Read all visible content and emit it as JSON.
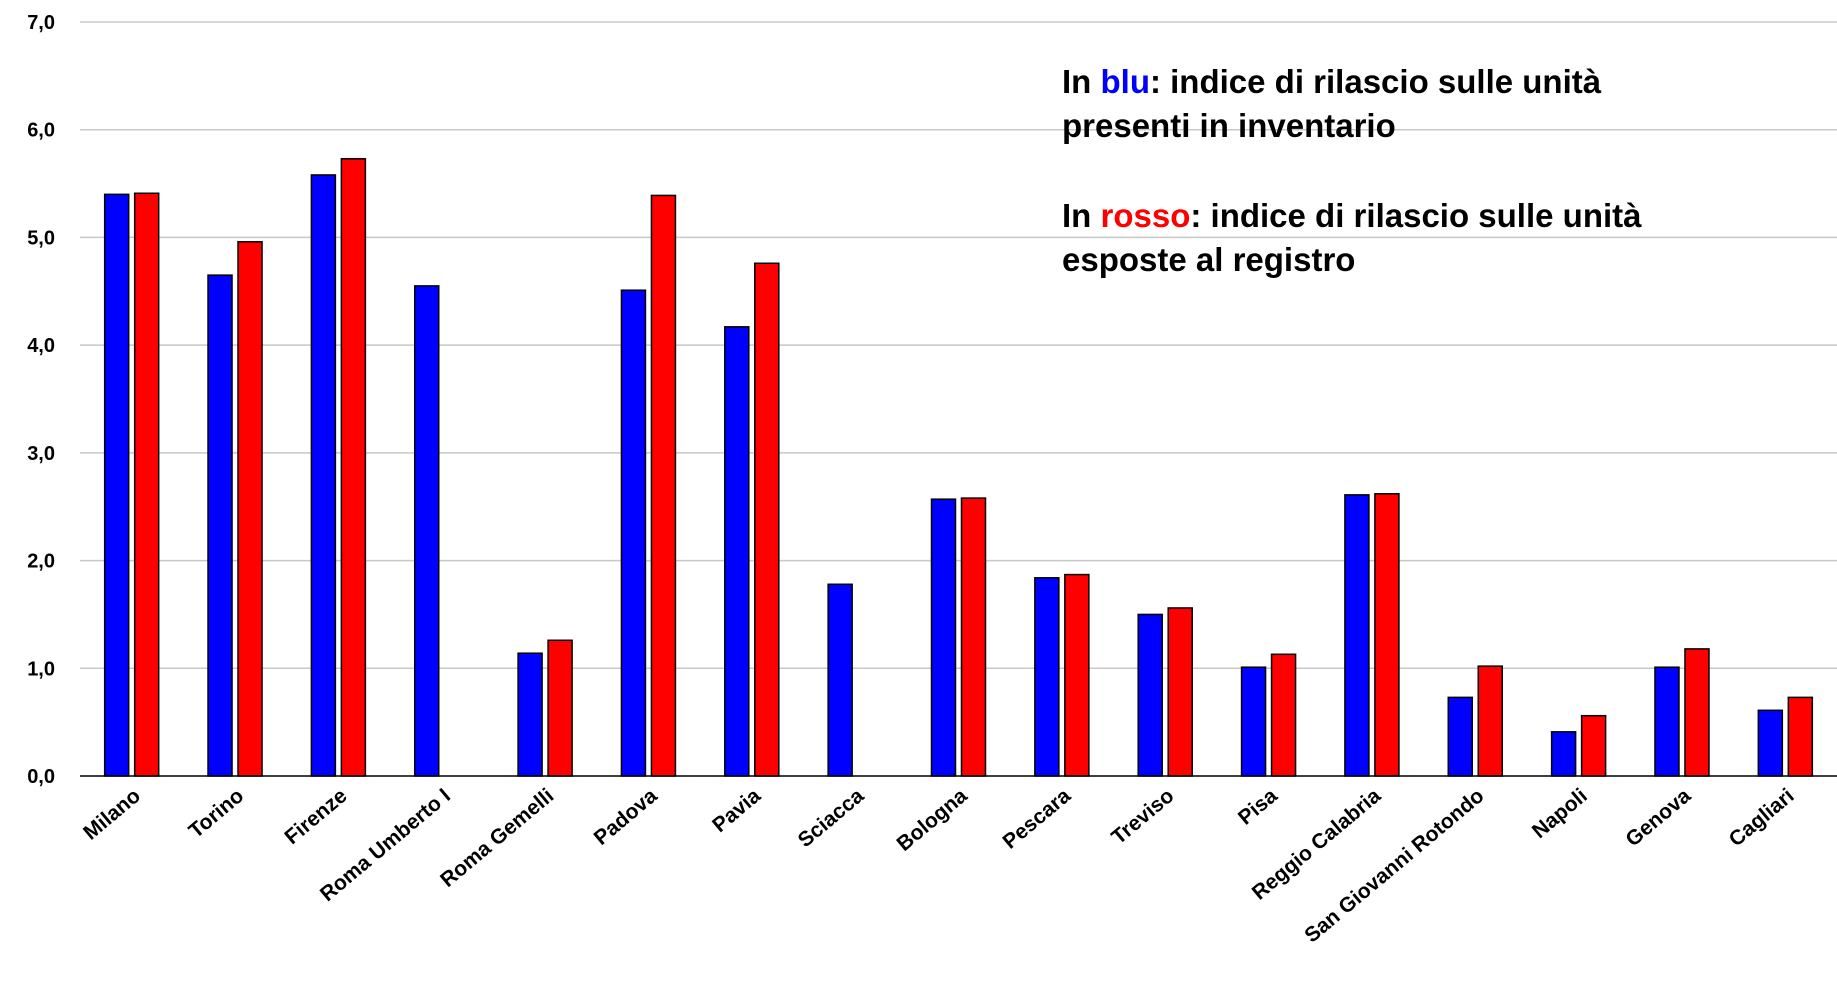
{
  "chart_data": {
    "type": "bar",
    "categories": [
      "Milano",
      "Torino",
      "Firenze",
      "Roma Umberto I",
      "Roma Gemelli",
      "Padova",
      "Pavia",
      "Sciacca",
      "Bologna",
      "Pescara",
      "Treviso",
      "Pisa",
      "Reggio Calabria",
      "San Giovanni Rotondo",
      "Napoli",
      "Genova",
      "Cagliari"
    ],
    "series": [
      {
        "color": "#0000ff",
        "values": [
          5.4,
          4.65,
          5.58,
          4.55,
          1.14,
          4.51,
          4.17,
          1.78,
          2.57,
          1.84,
          1.5,
          1.01,
          2.61,
          0.73,
          0.41,
          1.01,
          0.61
        ]
      },
      {
        "color": "#ff0000",
        "values": [
          5.41,
          4.96,
          5.73,
          null,
          1.26,
          5.39,
          4.76,
          null,
          2.58,
          1.87,
          1.56,
          1.13,
          2.62,
          1.02,
          0.56,
          1.18,
          0.73
        ]
      }
    ],
    "yticks": [
      "0,0",
      "1,0",
      "2,0",
      "3,0",
      "4,0",
      "5,0",
      "6,0",
      "7,0"
    ],
    "ylim": [
      0,
      7
    ],
    "grid": true
  },
  "legend": {
    "blue": {
      "prefix": "In ",
      "highlight": "blu",
      "suffix": ": indice di rilascio sulle unità",
      "line2": "presenti in inventario",
      "color": "#0000ff"
    },
    "red": {
      "prefix": "In ",
      "highlight": "rosso",
      "suffix": ": indice di rilascio sulle unità",
      "line2": "esposte al registro",
      "color": "#ff0000"
    }
  }
}
